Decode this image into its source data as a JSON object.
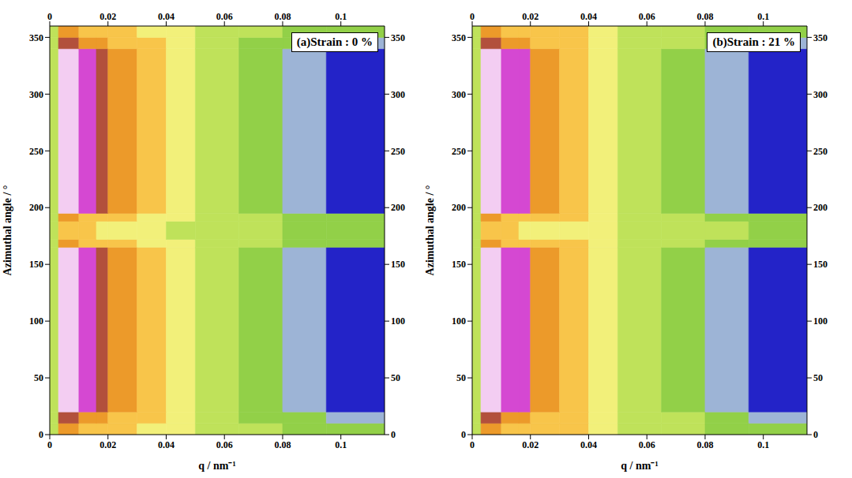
{
  "chart_data": [
    {
      "type": "heatmap",
      "title": "(a)Strain : 0 %",
      "x_label": "q / nm⁻¹",
      "y_label": "Azimuthal angle / °",
      "xlim": [
        0,
        0.115
      ],
      "xticks": [
        0,
        0.02,
        0.04,
        0.06,
        0.08,
        0.1
      ],
      "ylim": [
        0,
        360
      ],
      "yticks": [
        0,
        50,
        100,
        150,
        200,
        250,
        300,
        350
      ],
      "q_edges": [
        0,
        0.003,
        0.01,
        0.016,
        0.02,
        0.03,
        0.04,
        0.05,
        0.065,
        0.08,
        0.095,
        0.115
      ],
      "angle_edges": [
        0,
        10,
        20,
        165,
        172,
        188,
        195,
        340,
        350,
        360
      ],
      "zlim": [
        0,
        9
      ],
      "cells": [
        [
          3,
          6,
          5,
          5,
          5,
          4,
          4,
          3,
          3,
          2,
          2
        ],
        [
          3,
          7,
          6,
          6,
          5,
          5,
          4,
          3,
          2,
          2,
          1
        ],
        [
          3,
          9,
          8,
          7,
          6,
          5,
          4,
          3,
          2,
          1,
          0
        ],
        [
          3,
          6,
          5,
          5,
          5,
          4,
          4,
          3,
          3,
          2,
          2
        ],
        [
          3,
          5,
          5,
          4,
          4,
          4,
          3,
          3,
          3,
          2,
          2
        ],
        [
          3,
          6,
          5,
          5,
          5,
          4,
          4,
          3,
          3,
          2,
          2
        ],
        [
          3,
          9,
          8,
          7,
          6,
          5,
          4,
          3,
          2,
          1,
          0
        ],
        [
          3,
          7,
          6,
          6,
          5,
          5,
          4,
          3,
          2,
          2,
          1
        ],
        [
          3,
          6,
          5,
          5,
          5,
          4,
          4,
          3,
          3,
          2,
          2
        ]
      ]
    },
    {
      "type": "heatmap",
      "title": "(b)Strain : 21 %",
      "x_label": "q / nm⁻¹",
      "y_label": "Azimuthal angle / °",
      "xlim": [
        0,
        0.115
      ],
      "xticks": [
        0,
        0.02,
        0.04,
        0.06,
        0.08,
        0.1
      ],
      "ylim": [
        0,
        360
      ],
      "yticks": [
        0,
        50,
        100,
        150,
        200,
        250,
        300,
        350
      ],
      "q_edges": [
        0,
        0.003,
        0.01,
        0.016,
        0.02,
        0.03,
        0.04,
        0.05,
        0.065,
        0.08,
        0.095,
        0.115
      ],
      "angle_edges": [
        0,
        10,
        20,
        165,
        172,
        188,
        195,
        340,
        350,
        360
      ],
      "zlim": [
        0,
        9
      ],
      "cells": [
        [
          3,
          6,
          5,
          5,
          5,
          5,
          4,
          3,
          3,
          2,
          2
        ],
        [
          3,
          7,
          6,
          6,
          5,
          5,
          4,
          3,
          3,
          2,
          1
        ],
        [
          3,
          9,
          8,
          8,
          6,
          5,
          4,
          3,
          2,
          1,
          0
        ],
        [
          3,
          6,
          5,
          5,
          5,
          5,
          4,
          3,
          3,
          2,
          2
        ],
        [
          3,
          5,
          5,
          4,
          4,
          4,
          4,
          3,
          3,
          3,
          2
        ],
        [
          3,
          6,
          5,
          5,
          5,
          5,
          4,
          3,
          3,
          2,
          2
        ],
        [
          3,
          9,
          8,
          8,
          6,
          5,
          4,
          3,
          2,
          1,
          0
        ],
        [
          3,
          7,
          6,
          6,
          5,
          5,
          4,
          3,
          3,
          2,
          1
        ],
        [
          3,
          6,
          5,
          5,
          5,
          5,
          4,
          3,
          3,
          2,
          2
        ]
      ]
    }
  ]
}
